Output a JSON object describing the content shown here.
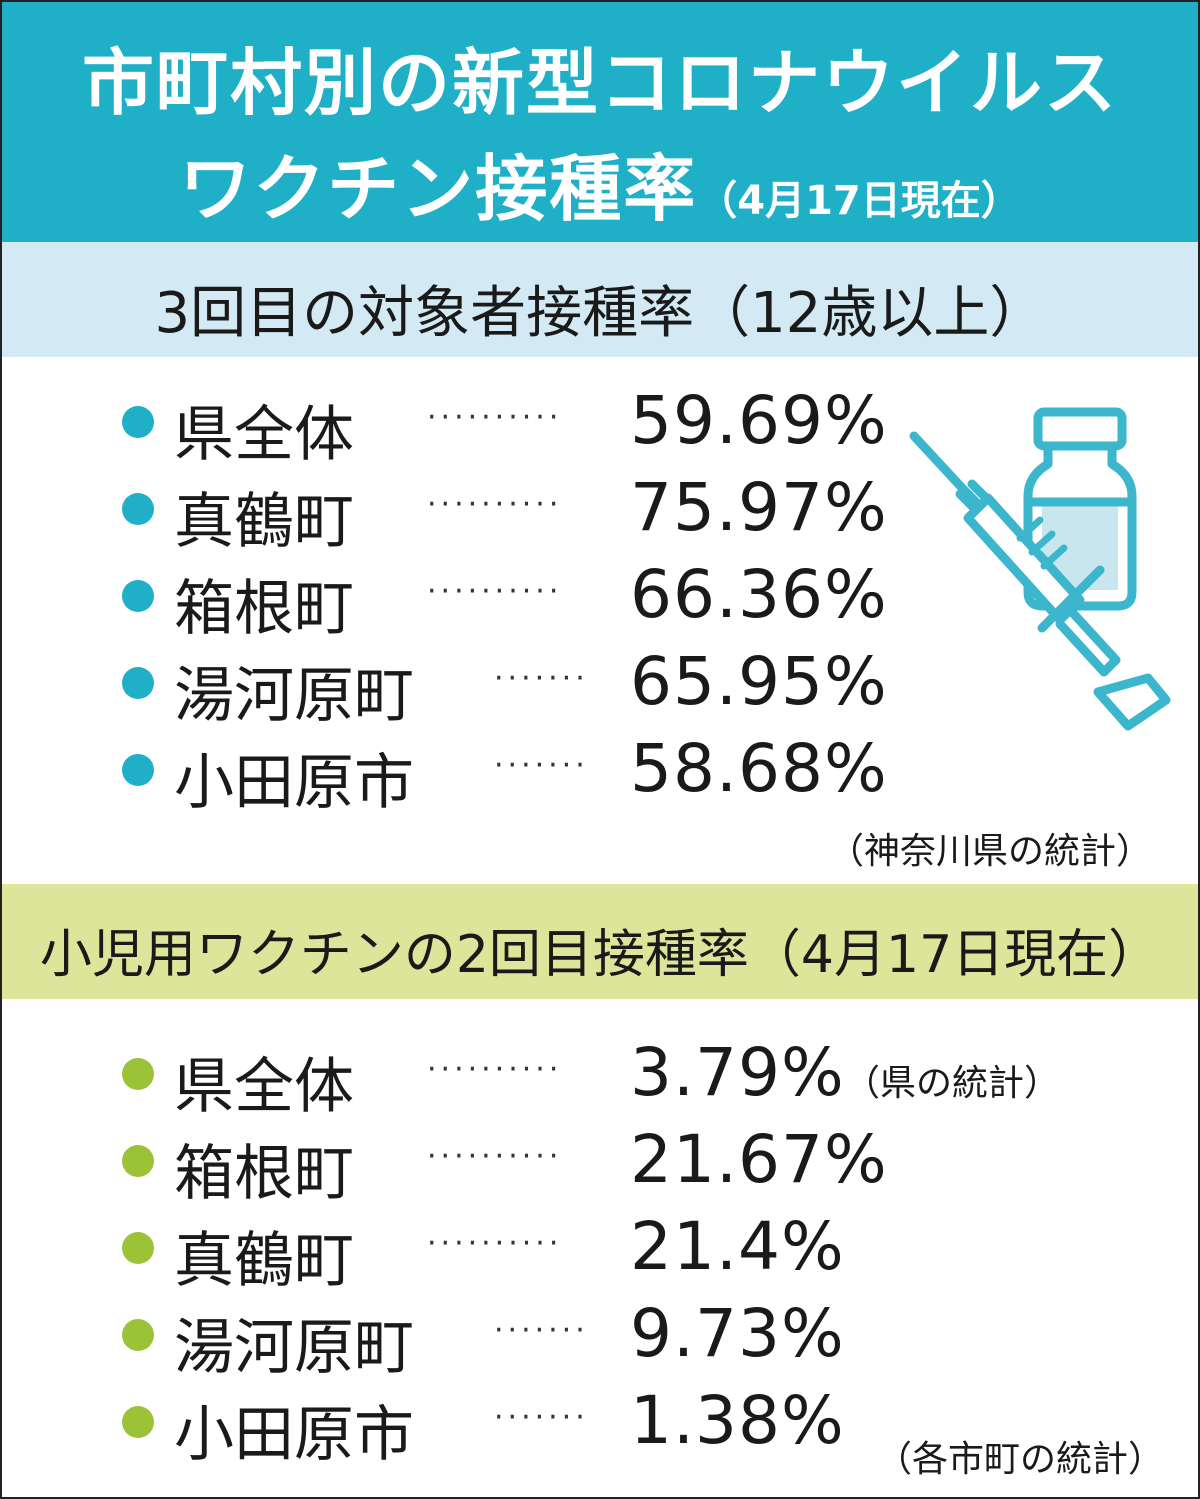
{
  "title": {
    "line1": "市町村別の新型コロナウイルス",
    "line2": "ワクチン接種率",
    "date_note": "（4月17日現在）"
  },
  "section1": {
    "heading": "3回目の対象者接種率（12歳以上）",
    "rows": [
      {
        "name": "県全体",
        "dots": "··········",
        "value": "59.69%"
      },
      {
        "name": "真鶴町",
        "dots": "··········",
        "value": "75.97%"
      },
      {
        "name": "箱根町",
        "dots": "··········",
        "value": "66.36%"
      },
      {
        "name": "湯河原町",
        "dots": "·······",
        "value": "65.95%"
      },
      {
        "name": "小田原市",
        "dots": "·······",
        "value": "58.68%"
      }
    ],
    "source": "（神奈川県の統計）"
  },
  "section2": {
    "heading": "小児用ワクチンの2回目接種率（4月17日現在）",
    "rows": [
      {
        "name": "県全体",
        "dots": "··········",
        "value": "3.79%",
        "note": "（県の統計）"
      },
      {
        "name": "箱根町",
        "dots": "··········",
        "value": "21.67%"
      },
      {
        "name": "真鶴町",
        "dots": "··········",
        "value": "21.4%"
      },
      {
        "name": "湯河原町",
        "dots": "·······",
        "value": "9.73%"
      },
      {
        "name": "小田原市",
        "dots": "·······",
        "value": "1.38%"
      }
    ],
    "source": "（各市町の統計）"
  },
  "colors": {
    "title_band": "#1fb0c8",
    "section1_band": "#d3e9f3",
    "section2_band": "#dde59a",
    "bullet_blue": "#1fb0c8",
    "bullet_green": "#9cc238",
    "illustration_line": "#3bb6cc",
    "illustration_fill": "#c9e6ee"
  },
  "icons": {
    "illustration": "syringe-and-vial-icon"
  }
}
